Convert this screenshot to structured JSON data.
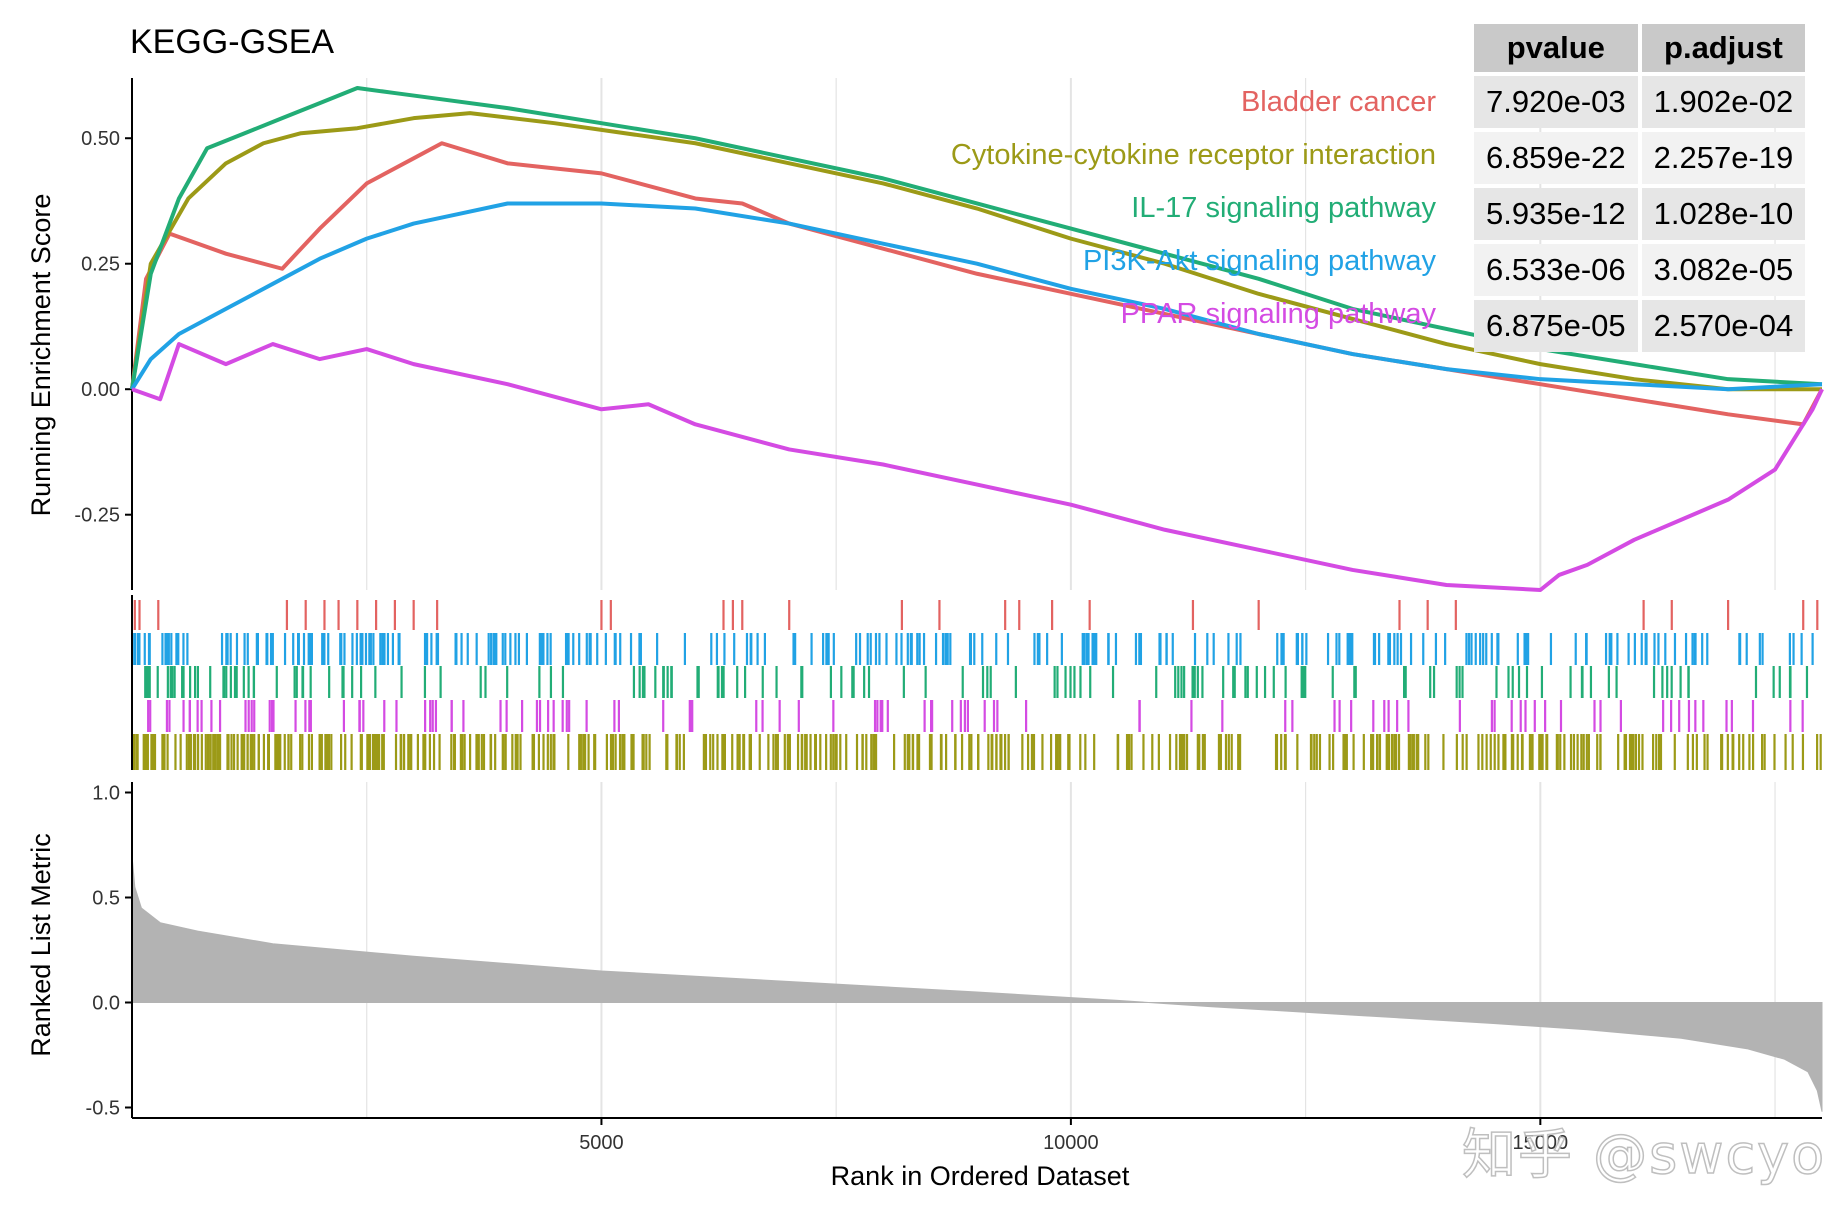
{
  "watermark": "知乎 @swcyo",
  "chart_data": {
    "type": "line",
    "title": "KEGG-GSEA",
    "xlabel": "Rank in Ordered Dataset",
    "xlim": [
      0,
      18000
    ],
    "x_ticks": [
      5000,
      10000,
      15000
    ],
    "x_tick_labels": [
      "5000",
      "10000",
      "15000"
    ],
    "panels": {
      "running": {
        "ylabel": "Running Enrichment Score",
        "ylim": [
          -0.4,
          0.62
        ],
        "y_ticks": [
          -0.25,
          0.0,
          0.25,
          0.5
        ],
        "y_tick_labels": [
          "-0.25",
          "0.00",
          "0.25",
          "0.50"
        ]
      },
      "ranked": {
        "ylabel": "Ranked List Metric",
        "ylim": [
          -0.55,
          1.05
        ],
        "y_ticks": [
          -0.5,
          0.0,
          0.5,
          1.0
        ],
        "y_tick_labels": [
          "-0.5",
          "0.0",
          "0.5",
          "1.0"
        ],
        "curve": {
          "x": [
            0,
            30,
            100,
            300,
            700,
            1500,
            3000,
            5000,
            7000,
            9000,
            10500,
            11500,
            13000,
            14500,
            15500,
            16500,
            17200,
            17600,
            17850,
            17950,
            18000
          ],
          "y": [
            0.7,
            0.55,
            0.45,
            0.38,
            0.34,
            0.28,
            0.22,
            0.15,
            0.1,
            0.05,
            0.01,
            -0.02,
            -0.06,
            -0.1,
            -0.13,
            -0.17,
            -0.22,
            -0.27,
            -0.33,
            -0.42,
            -0.52
          ]
        }
      }
    },
    "series": [
      {
        "name": "Bladder cancer",
        "color": "#e36361",
        "pvalue": "7.920e-03",
        "p_adjust": "1.902e-02",
        "x": [
          0,
          150,
          400,
          1000,
          1600,
          2000,
          2500,
          3000,
          3300,
          4000,
          4500,
          5000,
          6000,
          6500,
          7000,
          8000,
          9000,
          10000,
          11000,
          12000,
          13000,
          14000,
          15000,
          16000,
          17000,
          17800,
          18000
        ],
        "y": [
          0.0,
          0.22,
          0.31,
          0.27,
          0.24,
          0.32,
          0.41,
          0.46,
          0.49,
          0.45,
          0.44,
          0.43,
          0.38,
          0.37,
          0.33,
          0.28,
          0.23,
          0.19,
          0.15,
          0.11,
          0.07,
          0.04,
          0.01,
          -0.02,
          -0.05,
          -0.07,
          0.0
        ],
        "hits": [
          30,
          80,
          280,
          1650,
          1850,
          2050,
          2200,
          2400,
          2600,
          2800,
          3000,
          3250,
          5000,
          5100,
          6300,
          6400,
          6500,
          7000,
          8200,
          8600,
          9300,
          9450,
          9800,
          10200,
          11300,
          12000,
          13500,
          13800,
          14100,
          16100,
          16400,
          17000,
          17800,
          17950
        ]
      },
      {
        "name": "Cytokine-cytokine receptor interaction",
        "color": "#9c9a17",
        "pvalue": "6.859e-22",
        "p_adjust": "2.257e-19",
        "x": [
          0,
          200,
          600,
          1000,
          1400,
          1800,
          2400,
          3000,
          3600,
          4500,
          6000,
          7000,
          8000,
          9000,
          10000,
          11000,
          12000,
          13000,
          14000,
          15000,
          16000,
          17000,
          18000
        ],
        "y": [
          0.0,
          0.25,
          0.38,
          0.45,
          0.49,
          0.51,
          0.52,
          0.54,
          0.55,
          0.53,
          0.49,
          0.45,
          0.41,
          0.36,
          0.3,
          0.25,
          0.19,
          0.14,
          0.09,
          0.05,
          0.02,
          0.0,
          0.0
        ],
        "hits": []
      },
      {
        "name": "IL-17 signaling pathway",
        "color": "#22ad76",
        "pvalue": "5.935e-12",
        "p_adjust": "1.028e-10",
        "x": [
          0,
          200,
          500,
          800,
          1200,
          1600,
          2000,
          2400,
          2800,
          3200,
          4000,
          5000,
          6000,
          7000,
          8000,
          9000,
          10000,
          11000,
          12000,
          13000,
          14000,
          15000,
          16000,
          17000,
          18000
        ],
        "y": [
          0.0,
          0.23,
          0.38,
          0.48,
          0.51,
          0.54,
          0.57,
          0.6,
          0.59,
          0.58,
          0.56,
          0.53,
          0.5,
          0.46,
          0.42,
          0.37,
          0.32,
          0.27,
          0.22,
          0.16,
          0.12,
          0.08,
          0.05,
          0.02,
          0.01
        ],
        "hits": []
      },
      {
        "name": "PI3K-Akt signaling pathway",
        "color": "#21a2e5",
        "pvalue": "6.533e-06",
        "p_adjust": "3.082e-05",
        "x": [
          0,
          200,
          500,
          1000,
          1500,
          2000,
          2500,
          3000,
          3500,
          4000,
          5000,
          6000,
          7000,
          8000,
          9000,
          10000,
          11000,
          12000,
          13000,
          14000,
          15000,
          16000,
          17000,
          18000
        ],
        "y": [
          0.0,
          0.06,
          0.11,
          0.16,
          0.21,
          0.26,
          0.3,
          0.33,
          0.35,
          0.37,
          0.37,
          0.36,
          0.33,
          0.29,
          0.25,
          0.2,
          0.16,
          0.11,
          0.07,
          0.04,
          0.02,
          0.01,
          0.0,
          0.01
        ],
        "hits": []
      },
      {
        "name": "PPAR signaling pathway",
        "color": "#d44be3",
        "pvalue": "6.875e-05",
        "p_adjust": "2.570e-04",
        "x": [
          0,
          300,
          500,
          1000,
          1500,
          2000,
          2500,
          3000,
          4000,
          5000,
          5500,
          6000,
          7000,
          8000,
          9000,
          10000,
          11000,
          12000,
          13000,
          14000,
          15000,
          15200,
          15500,
          16000,
          16500,
          17000,
          17500,
          17900,
          18000
        ],
        "y": [
          0.0,
          -0.02,
          0.09,
          0.05,
          0.09,
          0.06,
          0.08,
          0.05,
          0.01,
          -0.04,
          -0.03,
          -0.07,
          -0.12,
          -0.15,
          -0.19,
          -0.23,
          -0.28,
          -0.32,
          -0.36,
          -0.39,
          -0.4,
          -0.37,
          -0.35,
          -0.3,
          -0.26,
          -0.22,
          -0.16,
          -0.04,
          0.0
        ],
        "hits": []
      }
    ]
  }
}
